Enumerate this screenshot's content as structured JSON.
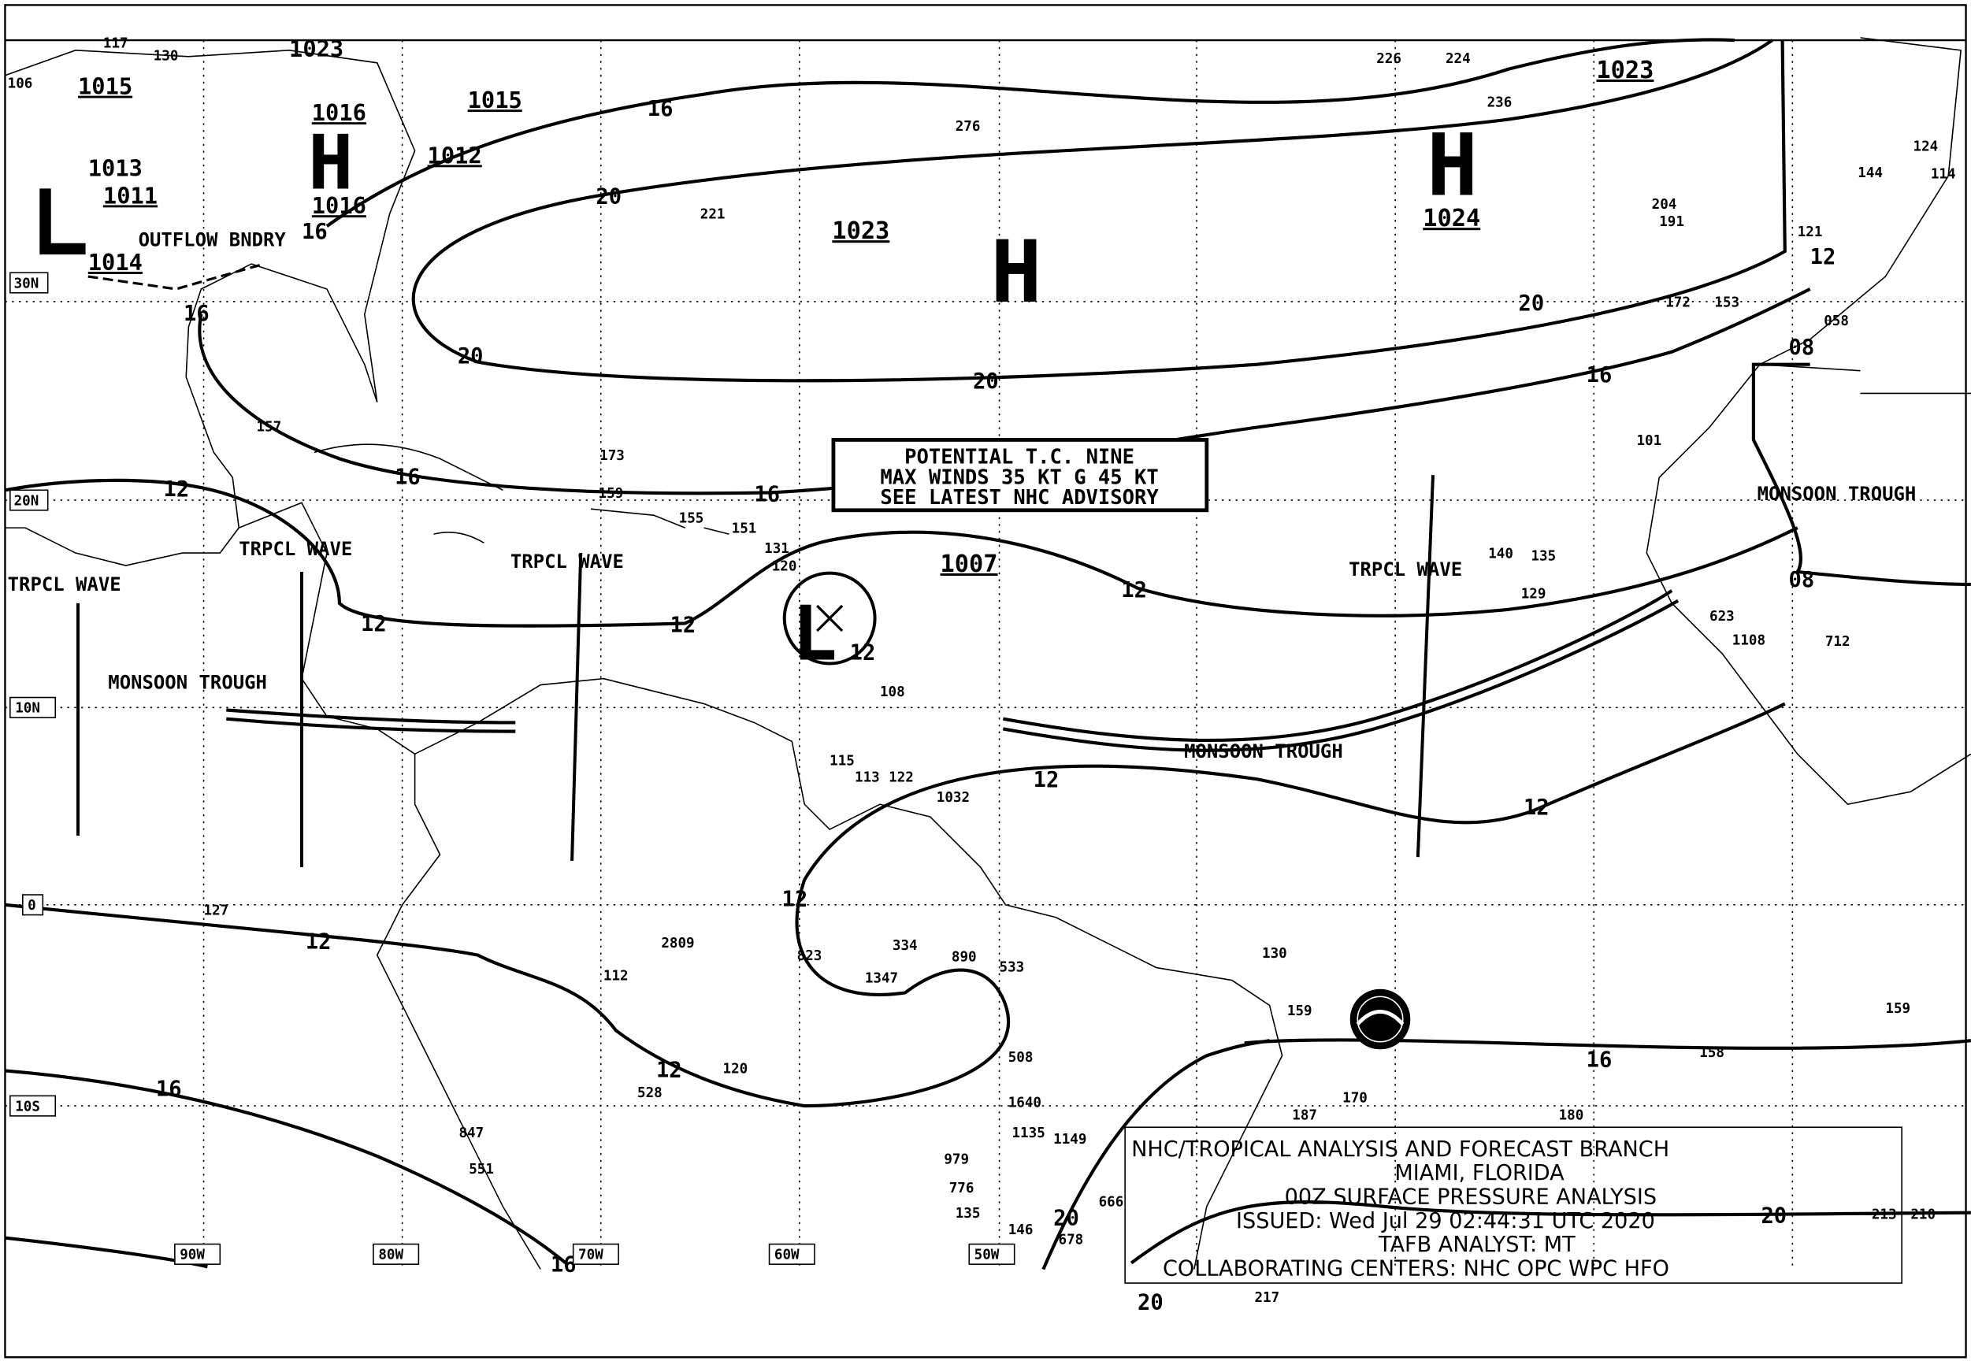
{
  "title_box": {
    "lines": [
      "NHC/TROPICAL ANALYSIS AND FORECAST BRANCH",
      "MIAMI, FLORIDA",
      "00Z SURFACE PRESSURE ANALYSIS",
      "ISSUED: Wed Jul 29 02:44:31 UTC 2020",
      "TAFB ANALYST: MT",
      "COLLABORATING CENTERS: NHC OPC WPC HFO"
    ]
  },
  "advisory_box": {
    "lines": [
      "POTENTIAL T.C. NINE",
      "MAX WINDS 35 KT G 45 KT",
      "SEE LATEST NHC ADVISORY"
    ]
  },
  "pressure_centers": [
    {
      "type": "H",
      "value": "1023"
    },
    {
      "type": "H",
      "value": "1024"
    },
    {
      "type": "L",
      "value": "1007"
    }
  ],
  "pressure_values": [
    "1023",
    "1015",
    "1016",
    "1012",
    "1013",
    "1011",
    "1014",
    "1016",
    "1015",
    "1013",
    "1023"
  ],
  "isobar_labels": [
    "16",
    "20",
    "20",
    "20",
    "16",
    "16",
    "16",
    "12",
    "12",
    "12",
    "16",
    "12",
    "12",
    "12",
    "08",
    "08",
    "12",
    "12",
    "12",
    "16",
    "16",
    "20",
    "20",
    "16",
    "20",
    "12",
    "12",
    "16",
    "20"
  ],
  "features": [
    {
      "label": "OUTFLOW BNDRY"
    },
    {
      "label": "TRPCL WAVE"
    },
    {
      "label": "TRPCL WAVE"
    },
    {
      "label": "TRPCL WAVE"
    },
    {
      "label": "TRPCL WAVE"
    },
    {
      "label": "MONSOON TROUGH"
    },
    {
      "label": "MONSOON TROUGH"
    },
    {
      "label": "MONSOON TROUGH"
    }
  ],
  "latitude_labels": [
    "30N",
    "20N",
    "10N",
    "0",
    "10S"
  ],
  "longitude_labels": [
    "90W",
    "80W",
    "70W",
    "60W",
    "50W"
  ],
  "station_obs": [
    "130",
    "106",
    "117",
    "221",
    "276",
    "226",
    "224",
    "236",
    "157",
    "173",
    "159",
    "155",
    "151",
    "131",
    "120",
    "108",
    "115",
    "113",
    "122",
    "1032",
    "127",
    "112",
    "120",
    "528",
    "847",
    "551",
    "2809",
    "823",
    "334",
    "1347",
    "890",
    "533",
    "508",
    "1640",
    "1135",
    "1149",
    "979",
    "776",
    "135",
    "146",
    "678",
    "666",
    "130",
    "159",
    "170",
    "158",
    "159",
    "187",
    "180",
    "217",
    "213",
    "210",
    "140",
    "135",
    "129",
    "101",
    "114",
    "124",
    "144",
    "121",
    "058",
    "172",
    "153",
    "204",
    "191",
    "1108",
    "712",
    "623"
  ],
  "colors": {
    "ink": "#000000",
    "background": "#ffffff"
  }
}
